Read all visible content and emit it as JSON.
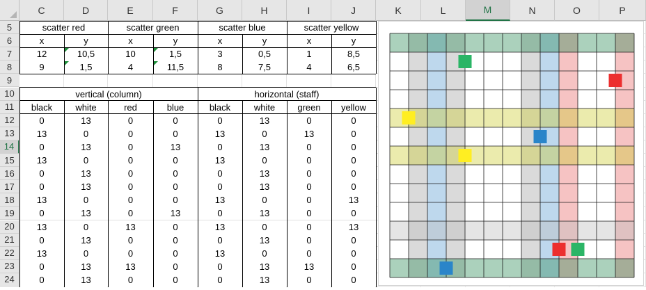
{
  "columns": [
    "C",
    "D",
    "E",
    "F",
    "G",
    "H",
    "I",
    "J",
    "K",
    "L",
    "M",
    "N",
    "O",
    "P"
  ],
  "selected_column": "M",
  "rows": [
    "5",
    "6",
    "7",
    "8",
    "9",
    "10",
    "11",
    "12",
    "13",
    "14",
    "15",
    "16",
    "17",
    "18",
    "19",
    "20",
    "21",
    "22",
    "23",
    "24"
  ],
  "selected_row": "14",
  "scatter_headers": [
    "scatter red",
    "scatter green",
    "scatter blue",
    "scatter yellow"
  ],
  "xy_labels": [
    "x",
    "y",
    "x",
    "y",
    "x",
    "y",
    "x",
    "y"
  ],
  "scatter_values": [
    [
      "12",
      "10,5",
      "10",
      "1,5",
      "3",
      "0,5",
      "1",
      "8,5"
    ],
    [
      "9",
      "1,5",
      "4",
      "11,5",
      "8",
      "7,5",
      "4",
      "6,5"
    ]
  ],
  "group_headers": [
    "vertical (column)",
    "horizontal (staff)"
  ],
  "color_headers": [
    "black",
    "white",
    "red",
    "blue",
    "black",
    "white",
    "green",
    "yellow"
  ],
  "color_rows": [
    [
      "0",
      "13",
      "0",
      "0",
      "0",
      "13",
      "0",
      "0"
    ],
    [
      "13",
      "0",
      "0",
      "0",
      "13",
      "0",
      "13",
      "0"
    ],
    [
      "0",
      "13",
      "0",
      "13",
      "0",
      "13",
      "0",
      "0"
    ],
    [
      "13",
      "0",
      "0",
      "0",
      "13",
      "0",
      "0",
      "0"
    ],
    [
      "0",
      "13",
      "0",
      "0",
      "0",
      "13",
      "0",
      "0"
    ],
    [
      "0",
      "13",
      "0",
      "0",
      "0",
      "13",
      "0",
      "0"
    ],
    [
      "13",
      "0",
      "0",
      "0",
      "13",
      "0",
      "0",
      "13"
    ],
    [
      "0",
      "13",
      "0",
      "13",
      "0",
      "13",
      "0",
      "0"
    ],
    [
      "13",
      "0",
      "13",
      "0",
      "13",
      "0",
      "0",
      "13"
    ],
    [
      "0",
      "13",
      "0",
      "0",
      "0",
      "13",
      "0",
      "0"
    ],
    [
      "13",
      "0",
      "0",
      "0",
      "13",
      "0",
      "0",
      "0"
    ],
    [
      "0",
      "13",
      "13",
      "0",
      "0",
      "13",
      "13",
      "0"
    ],
    [
      "0",
      "13",
      "0",
      "0",
      "0",
      "13",
      "0",
      "0"
    ]
  ],
  "chart_data": {
    "type": "scatter",
    "xlim": [
      0,
      13
    ],
    "ylim": [
      0,
      13
    ],
    "grid": true,
    "column_bands": [
      {
        "x": 1,
        "color": "#d4d4d4"
      },
      {
        "x": 2,
        "color": "#b3d1ea"
      },
      {
        "x": 3,
        "color": "#d4d4d4"
      },
      {
        "x": 7,
        "color": "#d4d4d4"
      },
      {
        "x": 8,
        "color": "#b3d1ea"
      },
      {
        "x": 9,
        "color": "#f4b8b8"
      },
      {
        "x": 12,
        "color": "#f4b8b8"
      }
    ],
    "row_bands": [
      {
        "y": 0,
        "color": "#2e8b57"
      },
      {
        "y": 2,
        "color": "#bdbdbd"
      },
      {
        "y": 6,
        "color": "#cccc33"
      },
      {
        "y": 8,
        "color": "#cccc33"
      },
      {
        "y": 12,
        "color": "#2e8b57"
      }
    ],
    "series": [
      {
        "name": "scatter red",
        "color": "#ec2f2f",
        "points": [
          [
            12,
            10.5
          ],
          [
            9,
            1.5
          ]
        ]
      },
      {
        "name": "scatter green",
        "color": "#2bb566",
        "points": [
          [
            10,
            1.5
          ],
          [
            4,
            11.5
          ]
        ]
      },
      {
        "name": "scatter blue",
        "color": "#2a85c9",
        "points": [
          [
            3,
            0.5
          ],
          [
            8,
            7.5
          ]
        ]
      },
      {
        "name": "scatter yellow",
        "color": "#ffee22",
        "points": [
          [
            1,
            8.5
          ],
          [
            4,
            6.5
          ]
        ]
      }
    ]
  }
}
